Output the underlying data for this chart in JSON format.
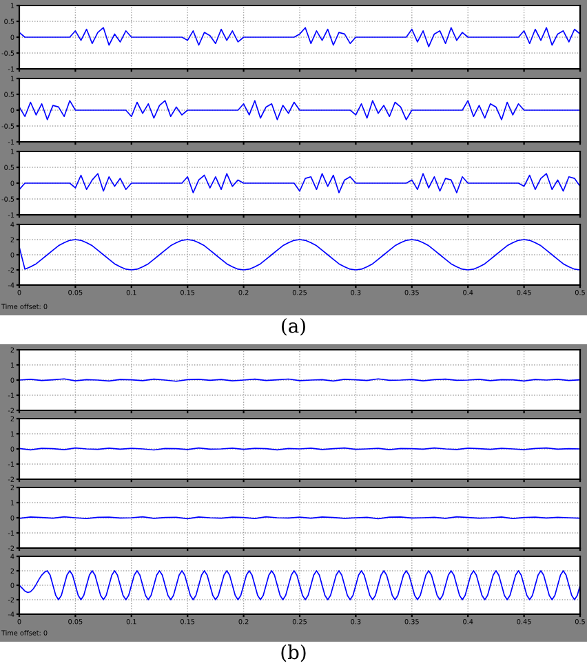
{
  "chart_data": [
    {
      "type": "line",
      "x": [
        0,
        0.005,
        0.01,
        0.015,
        0.02,
        0.025,
        0.03,
        0.035,
        0.04,
        0.045,
        0.05,
        0.055,
        0.06,
        0.065,
        0.07,
        0.075,
        0.08,
        0.085,
        0.09,
        0.095,
        0.1,
        0.105,
        0.11,
        0.115,
        0.12,
        0.125,
        0.13,
        0.135,
        0.14,
        0.145,
        0.15,
        0.155,
        0.16,
        0.165,
        0.17,
        0.175,
        0.18,
        0.185,
        0.19,
        0.195,
        0.2,
        0.205,
        0.21,
        0.215,
        0.22,
        0.225,
        0.23,
        0.235,
        0.24,
        0.245,
        0.25,
        0.255,
        0.26,
        0.265,
        0.27,
        0.275,
        0.28,
        0.285,
        0.29,
        0.295,
        0.3,
        0.305,
        0.31,
        0.315,
        0.32,
        0.325,
        0.33,
        0.335,
        0.34,
        0.345,
        0.35,
        0.355,
        0.36,
        0.365,
        0.37,
        0.375,
        0.38,
        0.385,
        0.39,
        0.395,
        0.4,
        0.405,
        0.41,
        0.415,
        0.42,
        0.425,
        0.43,
        0.435,
        0.44,
        0.445,
        0.45,
        0.455,
        0.46,
        0.465,
        0.47,
        0.475,
        0.48,
        0.485,
        0.49,
        0.495,
        0.5
      ],
      "series": [
        {
          "color": "#0000ff",
          "values": [
            0.15,
            0,
            0,
            0,
            0,
            0,
            0,
            0,
            0,
            0,
            0.2,
            -0.1,
            0.25,
            -0.2,
            0.15,
            0.3,
            -0.25,
            0.1,
            -0.15,
            0.2,
            0,
            0,
            0,
            0,
            0,
            0,
            0,
            0,
            0,
            0,
            -0.1,
            0.2,
            -0.25,
            0.15,
            0.05,
            -0.2,
            0.25,
            -0.1,
            0.2,
            -0.15,
            0,
            0,
            0,
            0,
            0,
            0,
            0,
            0,
            0,
            0,
            0.1,
            0.3,
            -0.2,
            0.2,
            -0.1,
            0.25,
            -0.25,
            0.15,
            0.1,
            -0.2,
            0,
            0,
            0,
            0,
            0,
            0,
            0,
            0,
            0,
            0,
            0.25,
            -0.15,
            0.2,
            -0.3,
            0.1,
            0.2,
            -0.2,
            0.3,
            -0.1,
            0.15,
            0,
            0,
            0,
            0,
            0,
            0,
            0,
            0,
            0,
            0,
            0.2,
            -0.2,
            0.25,
            -0.1,
            0.3,
            -0.25,
            0.1,
            0.2,
            -0.15,
            0.25,
            0.1
          ]
        }
      ],
      "xlim": [
        0,
        0.5
      ],
      "ylim": [
        -1,
        1
      ],
      "xticks": [
        0,
        0.05,
        0.1,
        0.15,
        0.2,
        0.25,
        0.3,
        0.35,
        0.4,
        0.45,
        0.5
      ],
      "yticks": [
        -1,
        -0.5,
        0,
        0.5,
        1
      ],
      "grid": true,
      "tick_labels": "y"
    },
    {
      "type": "line",
      "x": [
        0,
        0.005,
        0.01,
        0.015,
        0.02,
        0.025,
        0.03,
        0.035,
        0.04,
        0.045,
        0.05,
        0.055,
        0.06,
        0.065,
        0.07,
        0.075,
        0.08,
        0.085,
        0.09,
        0.095,
        0.1,
        0.105,
        0.11,
        0.115,
        0.12,
        0.125,
        0.13,
        0.135,
        0.14,
        0.145,
        0.15,
        0.155,
        0.16,
        0.165,
        0.17,
        0.175,
        0.18,
        0.185,
        0.19,
        0.195,
        0.2,
        0.205,
        0.21,
        0.215,
        0.22,
        0.225,
        0.23,
        0.235,
        0.24,
        0.245,
        0.25,
        0.255,
        0.26,
        0.265,
        0.27,
        0.275,
        0.28,
        0.285,
        0.29,
        0.295,
        0.3,
        0.305,
        0.31,
        0.315,
        0.32,
        0.325,
        0.33,
        0.335,
        0.34,
        0.345,
        0.35,
        0.355,
        0.36,
        0.365,
        0.37,
        0.375,
        0.38,
        0.385,
        0.39,
        0.395,
        0.4,
        0.405,
        0.41,
        0.415,
        0.42,
        0.425,
        0.43,
        0.435,
        0.44,
        0.445,
        0.45,
        0.455,
        0.46,
        0.465,
        0.47,
        0.475,
        0.48,
        0.485,
        0.49,
        0.495,
        0.5
      ],
      "series": [
        {
          "color": "#0000ff",
          "values": [
            0.1,
            -0.2,
            0.25,
            -0.15,
            0.2,
            -0.3,
            0.15,
            0.1,
            -0.2,
            0.3,
            0,
            0,
            0,
            0,
            0,
            0,
            0,
            0,
            0,
            0,
            -0.2,
            0.25,
            -0.1,
            0.2,
            -0.25,
            0.15,
            0.3,
            -0.2,
            0.1,
            -0.15,
            0,
            0,
            0,
            0,
            0,
            0,
            0,
            0,
            0,
            0,
            0.2,
            -0.15,
            0.3,
            -0.25,
            0.1,
            0.2,
            -0.3,
            0.15,
            -0.1,
            0.25,
            0,
            0,
            0,
            0,
            0,
            0,
            0,
            0,
            0,
            0,
            -0.15,
            0.2,
            -0.25,
            0.3,
            -0.1,
            0.15,
            -0.2,
            0.25,
            0.1,
            -0.3,
            0,
            0,
            0,
            0,
            0,
            0,
            0,
            0,
            0,
            0,
            0.3,
            -0.2,
            0.15,
            -0.25,
            0.2,
            0.1,
            -0.3,
            0.25,
            -0.15,
            0.2,
            0,
            0,
            0,
            0,
            0,
            0,
            0,
            0,
            0,
            0,
            0
          ]
        }
      ],
      "xlim": [
        0,
        0.5
      ],
      "ylim": [
        -1,
        1
      ],
      "xticks": [
        0,
        0.05,
        0.1,
        0.15,
        0.2,
        0.25,
        0.3,
        0.35,
        0.4,
        0.45,
        0.5
      ],
      "yticks": [
        -1,
        -0.5,
        0,
        0.5,
        1
      ],
      "grid": true,
      "tick_labels": "y"
    },
    {
      "type": "line",
      "x": [
        0,
        0.005,
        0.01,
        0.015,
        0.02,
        0.025,
        0.03,
        0.035,
        0.04,
        0.045,
        0.05,
        0.055,
        0.06,
        0.065,
        0.07,
        0.075,
        0.08,
        0.085,
        0.09,
        0.095,
        0.1,
        0.105,
        0.11,
        0.115,
        0.12,
        0.125,
        0.13,
        0.135,
        0.14,
        0.145,
        0.15,
        0.155,
        0.16,
        0.165,
        0.17,
        0.175,
        0.18,
        0.185,
        0.19,
        0.195,
        0.2,
        0.205,
        0.21,
        0.215,
        0.22,
        0.225,
        0.23,
        0.235,
        0.24,
        0.245,
        0.25,
        0.255,
        0.26,
        0.265,
        0.27,
        0.275,
        0.28,
        0.285,
        0.29,
        0.295,
        0.3,
        0.305,
        0.31,
        0.315,
        0.32,
        0.325,
        0.33,
        0.335,
        0.34,
        0.345,
        0.35,
        0.355,
        0.36,
        0.365,
        0.37,
        0.375,
        0.38,
        0.385,
        0.39,
        0.395,
        0.4,
        0.405,
        0.41,
        0.415,
        0.42,
        0.425,
        0.43,
        0.435,
        0.44,
        0.445,
        0.45,
        0.455,
        0.46,
        0.465,
        0.47,
        0.475,
        0.48,
        0.485,
        0.49,
        0.495,
        0.5
      ],
      "series": [
        {
          "color": "#0000ff",
          "values": [
            -0.2,
            0,
            0,
            0,
            0,
            0,
            0,
            0,
            0,
            0,
            -0.15,
            0.25,
            -0.2,
            0.1,
            0.3,
            -0.25,
            0.2,
            -0.1,
            0.15,
            -0.2,
            0,
            0,
            0,
            0,
            0,
            0,
            0,
            0,
            0,
            0,
            0.2,
            -0.3,
            0.1,
            0.25,
            -0.15,
            0.2,
            -0.2,
            0.3,
            -0.1,
            0.1,
            0,
            0,
            0,
            0,
            0,
            0,
            0,
            0,
            0,
            0,
            -0.25,
            0.15,
            0.2,
            -0.2,
            0.3,
            -0.1,
            0.25,
            -0.3,
            0.1,
            0.2,
            0,
            0,
            0,
            0,
            0,
            0,
            0,
            0,
            0,
            0,
            0.1,
            -0.2,
            0.3,
            -0.15,
            0.2,
            -0.25,
            0.15,
            0.1,
            -0.3,
            0.2,
            0,
            0,
            0,
            0,
            0,
            0,
            0,
            0,
            0,
            0,
            -0.1,
            0.25,
            -0.2,
            0.15,
            0.3,
            -0.2,
            0.1,
            -0.25,
            0.2,
            0.15,
            -0.1
          ]
        }
      ],
      "xlim": [
        0,
        0.5
      ],
      "ylim": [
        -1,
        1
      ],
      "xticks": [
        0,
        0.05,
        0.1,
        0.15,
        0.2,
        0.25,
        0.3,
        0.35,
        0.4,
        0.45,
        0.5
      ],
      "yticks": [
        -1,
        -0.5,
        0,
        0.5,
        1
      ],
      "grid": true,
      "tick_labels": "y"
    },
    {
      "type": "line",
      "x": [
        0,
        0.005,
        0.01,
        0.015,
        0.02,
        0.025,
        0.03,
        0.035,
        0.04,
        0.045,
        0.05,
        0.055,
        0.06,
        0.065,
        0.07,
        0.075,
        0.08,
        0.085,
        0.09,
        0.095,
        0.1,
        0.105,
        0.11,
        0.115,
        0.12,
        0.125,
        0.13,
        0.135,
        0.14,
        0.145,
        0.15,
        0.155,
        0.16,
        0.165,
        0.17,
        0.175,
        0.18,
        0.185,
        0.19,
        0.195,
        0.2,
        0.205,
        0.21,
        0.215,
        0.22,
        0.225,
        0.23,
        0.235,
        0.24,
        0.245,
        0.25,
        0.255,
        0.26,
        0.265,
        0.27,
        0.275,
        0.28,
        0.285,
        0.29,
        0.295,
        0.3,
        0.305,
        0.31,
        0.315,
        0.32,
        0.325,
        0.33,
        0.335,
        0.34,
        0.345,
        0.35,
        0.355,
        0.36,
        0.365,
        0.37,
        0.375,
        0.38,
        0.385,
        0.39,
        0.395,
        0.4,
        0.405,
        0.41,
        0.415,
        0.42,
        0.425,
        0.43,
        0.435,
        0.44,
        0.445,
        0.45,
        0.455,
        0.46,
        0.465,
        0.47,
        0.475,
        0.48,
        0.485,
        0.49,
        0.495,
        0.5
      ],
      "series": [
        {
          "color": "#0000ff",
          "values": [
            1,
            -1.9,
            -1.6,
            -1.2,
            -0.6,
            0,
            0.6,
            1.2,
            1.6,
            1.9,
            2,
            1.9,
            1.6,
            1.2,
            0.6,
            0,
            -0.6,
            -1.2,
            -1.6,
            -1.9,
            -2,
            -1.9,
            -1.6,
            -1.2,
            -0.6,
            0,
            0.6,
            1.2,
            1.6,
            1.9,
            2,
            1.9,
            1.6,
            1.2,
            0.6,
            0,
            -0.6,
            -1.2,
            -1.6,
            -1.9,
            -2,
            -1.9,
            -1.6,
            -1.2,
            -0.6,
            0,
            0.6,
            1.2,
            1.6,
            1.9,
            2,
            1.9,
            1.6,
            1.2,
            0.6,
            0,
            -0.6,
            -1.2,
            -1.6,
            -1.9,
            -2,
            -1.9,
            -1.6,
            -1.2,
            -0.6,
            0,
            0.6,
            1.2,
            1.6,
            1.9,
            2,
            1.9,
            1.6,
            1.2,
            0.6,
            0,
            -0.6,
            -1.2,
            -1.6,
            -1.9,
            -2,
            -1.9,
            -1.6,
            -1.2,
            -0.6,
            0,
            0.6,
            1.2,
            1.6,
            1.9,
            2,
            1.9,
            1.6,
            1.2,
            0.6,
            0,
            -0.6,
            -1.2,
            -1.6,
            -1.9,
            -2
          ]
        }
      ],
      "xlim": [
        0,
        0.5
      ],
      "ylim": [
        -4,
        4
      ],
      "xticks": [
        0,
        0.05,
        0.1,
        0.15,
        0.2,
        0.25,
        0.3,
        0.35,
        0.4,
        0.45,
        0.5
      ],
      "yticks": [
        -4,
        -2,
        0,
        2,
        4
      ],
      "grid": true,
      "annotations": [
        "Time offset: 0",
        "(a)"
      ]
    },
    {
      "type": "line",
      "x": [
        0,
        0.01,
        0.02,
        0.03,
        0.04,
        0.05,
        0.06,
        0.07,
        0.08,
        0.09,
        0.1,
        0.11,
        0.12,
        0.13,
        0.14,
        0.15,
        0.16,
        0.17,
        0.18,
        0.19,
        0.2,
        0.21,
        0.22,
        0.23,
        0.24,
        0.25,
        0.26,
        0.27,
        0.28,
        0.29,
        0.3,
        0.31,
        0.32,
        0.33,
        0.34,
        0.35,
        0.36,
        0.37,
        0.38,
        0.39,
        0.4,
        0.41,
        0.42,
        0.43,
        0.44,
        0.45,
        0.46,
        0.47,
        0.48,
        0.49,
        0.5
      ],
      "series": [
        {
          "color": "#0000ff",
          "values": [
            0,
            0.05,
            -0.03,
            0.02,
            0.08,
            -0.05,
            0.03,
            0,
            -0.06,
            0.04,
            0.02,
            -0.04,
            0.06,
            0,
            -0.08,
            0.03,
            0.05,
            -0.02,
            0.04,
            -0.05,
            0,
            0.06,
            -0.03,
            0.02,
            0.07,
            -0.04,
            0,
            0.03,
            -0.06,
            0.05,
            0.02,
            -0.03,
            0.08,
            -0.02,
            0,
            0.04,
            -0.05,
            0.03,
            0.06,
            -0.02,
            0,
            0.05,
            -0.04,
            0.03,
            0.02,
            -0.06,
            0.04,
            0,
            0.05,
            -0.03,
            0.02
          ]
        }
      ],
      "xlim": [
        0,
        0.5
      ],
      "ylim": [
        -2,
        2
      ],
      "xticks": [
        0,
        0.05,
        0.1,
        0.15,
        0.2,
        0.25,
        0.3,
        0.35,
        0.4,
        0.45,
        0.5
      ],
      "yticks": [
        -2,
        -1,
        0,
        1,
        2
      ],
      "grid": true,
      "tick_labels": "y"
    },
    {
      "type": "line",
      "x": [
        0,
        0.01,
        0.02,
        0.03,
        0.04,
        0.05,
        0.06,
        0.07,
        0.08,
        0.09,
        0.1,
        0.11,
        0.12,
        0.13,
        0.14,
        0.15,
        0.16,
        0.17,
        0.18,
        0.19,
        0.2,
        0.21,
        0.22,
        0.23,
        0.24,
        0.25,
        0.26,
        0.27,
        0.28,
        0.29,
        0.3,
        0.31,
        0.32,
        0.33,
        0.34,
        0.35,
        0.36,
        0.37,
        0.38,
        0.39,
        0.4,
        0.41,
        0.42,
        0.43,
        0.44,
        0.45,
        0.46,
        0.47,
        0.48,
        0.49,
        0.5
      ],
      "series": [
        {
          "color": "#0000ff",
          "values": [
            0.03,
            -0.06,
            0.04,
            0.02,
            -0.05,
            0.06,
            0,
            -0.03,
            0.05,
            -0.02,
            0.04,
            0,
            -0.07,
            0.03,
            0.02,
            -0.04,
            0.06,
            -0.02,
            0,
            0.05,
            -0.03,
            0.04,
            0.02,
            -0.06,
            0.03,
            0,
            0.05,
            -0.04,
            0.02,
            0.06,
            -0.03,
            0,
            0.04,
            -0.05,
            0.03,
            0.02,
            -0.02,
            0.06,
            0,
            -0.04,
            0.05,
            0.02,
            -0.03,
            0.04,
            0,
            -0.05,
            0.03,
            0.06,
            -0.02,
            0.02,
            0
          ]
        }
      ],
      "xlim": [
        0,
        0.5
      ],
      "ylim": [
        -2,
        2
      ],
      "xticks": [
        0,
        0.05,
        0.1,
        0.15,
        0.2,
        0.25,
        0.3,
        0.35,
        0.4,
        0.45,
        0.5
      ],
      "yticks": [
        -2,
        -1,
        0,
        1,
        2
      ],
      "grid": true,
      "tick_labels": "y"
    },
    {
      "type": "line",
      "x": [
        0,
        0.01,
        0.02,
        0.03,
        0.04,
        0.05,
        0.06,
        0.07,
        0.08,
        0.09,
        0.1,
        0.11,
        0.12,
        0.13,
        0.14,
        0.15,
        0.16,
        0.17,
        0.18,
        0.19,
        0.2,
        0.21,
        0.22,
        0.23,
        0.24,
        0.25,
        0.26,
        0.27,
        0.28,
        0.29,
        0.3,
        0.31,
        0.32,
        0.33,
        0.34,
        0.35,
        0.36,
        0.37,
        0.38,
        0.39,
        0.4,
        0.41,
        0.42,
        0.43,
        0.44,
        0.45,
        0.46,
        0.47,
        0.48,
        0.49,
        0.5
      ],
      "series": [
        {
          "color": "#0000ff",
          "values": [
            -0.04,
            0.05,
            0.02,
            -0.03,
            0.06,
            0,
            -0.05,
            0.03,
            0.04,
            -0.02,
            0,
            0.06,
            -0.04,
            0.02,
            0.03,
            -0.06,
            0.05,
            0,
            -0.03,
            0.04,
            0.02,
            -0.05,
            0.06,
            0,
            -0.02,
            0.04,
            -0.03,
            0.05,
            0.02,
            -0.04,
            0,
            0.03,
            -0.06,
            0.04,
            0.05,
            -0.02,
            0,
            0.03,
            -0.04,
            0.06,
            0.02,
            -0.03,
            0,
            0.05,
            -0.05,
            0.02,
            0.04,
            -0.02,
            0.03,
            0,
            -0.03
          ]
        }
      ],
      "xlim": [
        0,
        0.5
      ],
      "ylim": [
        -2,
        2
      ],
      "xticks": [
        0,
        0.05,
        0.1,
        0.15,
        0.2,
        0.25,
        0.3,
        0.35,
        0.4,
        0.45,
        0.5
      ],
      "yticks": [
        -2,
        -1,
        0,
        1,
        2
      ],
      "grid": true,
      "tick_labels": "y"
    },
    {
      "type": "line",
      "x": [
        0,
        0.0025,
        0.005,
        0.0075,
        0.01,
        0.0125,
        0.015,
        0.0175,
        0.02,
        0.0225,
        0.025,
        0.0275,
        0.03,
        0.0325,
        0.035,
        0.0375,
        0.04,
        0.0425,
        0.045,
        0.0475,
        0.05,
        0.0525,
        0.055,
        0.0575,
        0.06,
        0.0625,
        0.065,
        0.0675,
        0.07,
        0.0725,
        0.075,
        0.0775,
        0.08,
        0.0825,
        0.085,
        0.0875,
        0.09,
        0.0925,
        0.095,
        0.0975,
        0.1,
        0.1025,
        0.105,
        0.1075,
        0.11,
        0.1125,
        0.115,
        0.1175,
        0.12,
        0.1225,
        0.125,
        0.1275,
        0.13,
        0.1325,
        0.135,
        0.1375,
        0.14,
        0.1425,
        0.145,
        0.1475,
        0.15,
        0.1525,
        0.155,
        0.1575,
        0.16,
        0.1625,
        0.165,
        0.1675,
        0.17,
        0.1725,
        0.175,
        0.1775,
        0.18,
        0.1825,
        0.185,
        0.1875,
        0.19,
        0.1925,
        0.195,
        0.1975,
        0.2,
        0.2025,
        0.205,
        0.2075,
        0.21,
        0.2125,
        0.215,
        0.2175,
        0.22,
        0.2225,
        0.225,
        0.2275,
        0.23,
        0.2325,
        0.235,
        0.2375,
        0.24,
        0.2425,
        0.245,
        0.2475,
        0.25,
        0.2525,
        0.255,
        0.2575,
        0.26,
        0.2625,
        0.265,
        0.2675,
        0.27,
        0.2725,
        0.275,
        0.2775,
        0.28,
        0.2825,
        0.285,
        0.2875,
        0.29,
        0.2925,
        0.295,
        0.2975,
        0.3,
        0.3025,
        0.305,
        0.3075,
        0.31,
        0.3125,
        0.315,
        0.3175,
        0.32,
        0.3225,
        0.325,
        0.3275,
        0.33,
        0.3325,
        0.335,
        0.3375,
        0.34,
        0.3425,
        0.345,
        0.3475,
        0.35,
        0.3525,
        0.355,
        0.3575,
        0.36,
        0.3625,
        0.365,
        0.3675,
        0.37,
        0.3725,
        0.375,
        0.3775,
        0.38,
        0.3825,
        0.385,
        0.3875,
        0.39,
        0.3925,
        0.395,
        0.3975,
        0.4,
        0.4025,
        0.405,
        0.4075,
        0.41,
        0.4125,
        0.415,
        0.4175,
        0.42,
        0.4225,
        0.425,
        0.4275,
        0.43,
        0.4325,
        0.435,
        0.4375,
        0.44,
        0.4425,
        0.445,
        0.4475,
        0.45,
        0.4525,
        0.455,
        0.4575,
        0.46,
        0.4625,
        0.465,
        0.4675,
        0.47,
        0.4725,
        0.475,
        0.4775,
        0.48,
        0.4825,
        0.485,
        0.4875,
        0.49,
        0.4925,
        0.495,
        0.4975,
        0.5
      ],
      "series": [
        {
          "color": "#0000ff",
          "values": [
            0,
            -0.4,
            -0.8,
            -1,
            -0.9,
            -0.5,
            0.1,
            0.8,
            1.4,
            1.8,
            2,
            1.4,
            0,
            -1.4,
            -2,
            -1.4,
            0,
            1.4,
            2,
            1.4,
            0,
            -1.4,
            -2,
            -1.4,
            0,
            1.4,
            2,
            1.4,
            0,
            -1.4,
            -2,
            -1.4,
            0,
            1.4,
            2,
            1.4,
            0,
            -1.4,
            -2,
            -1.4,
            0,
            1.4,
            2,
            1.4,
            0,
            -1.4,
            -2,
            -1.4,
            0,
            1.4,
            2,
            1.4,
            0,
            -1.4,
            -2,
            -1.4,
            0,
            1.4,
            2,
            1.4,
            0,
            -1.4,
            -2,
            -1.4,
            0,
            1.4,
            2,
            1.4,
            0,
            -1.4,
            -2,
            -1.4,
            0,
            1.4,
            2,
            1.4,
            0,
            -1.4,
            -2,
            -1.4,
            0,
            1.4,
            2,
            1.4,
            0,
            -1.4,
            -2,
            -1.4,
            0,
            1.4,
            2,
            1.4,
            0,
            -1.4,
            -2,
            -1.4,
            0,
            1.4,
            2,
            1.4,
            0,
            -1.4,
            -2,
            -1.4,
            0,
            1.4,
            2,
            1.4,
            0,
            -1.4,
            -2,
            -1.4,
            0,
            1.4,
            2,
            1.4,
            0,
            -1.4,
            -2,
            -1.4,
            0,
            1.4,
            2,
            1.4,
            0,
            -1.4,
            -2,
            -1.4,
            0,
            1.4,
            2,
            1.4,
            0,
            -1.4,
            -2,
            -1.4,
            0,
            1.4,
            2,
            1.4,
            0,
            -1.4,
            -2,
            -1.4,
            0,
            1.4,
            2,
            1.4,
            0,
            -1.4,
            -2,
            -1.4,
            0,
            1.4,
            2,
            1.4,
            0,
            -1.4,
            -2,
            -1.4,
            0,
            1.4,
            2,
            1.4,
            0,
            -1.4,
            -2,
            -1.4,
            0,
            1.4,
            2,
            1.4,
            0,
            -1.4,
            -2,
            -1.4,
            0,
            1.4,
            2,
            1.4,
            0,
            -1.4,
            -2,
            -1.4,
            0,
            1.4,
            2,
            1.4,
            0,
            -1.4,
            -2,
            -1.4,
            0,
            1.4,
            2,
            1.4,
            0,
            -1.4,
            -2,
            -1.4,
            0
          ]
        }
      ],
      "xlim": [
        0,
        0.5
      ],
      "ylim": [
        -4,
        4
      ],
      "xticks": [
        0,
        0.05,
        0.1,
        0.15,
        0.2,
        0.25,
        0.3,
        0.35,
        0.4,
        0.45,
        0.5
      ],
      "yticks": [
        -4,
        -2,
        0,
        2,
        4
      ],
      "grid": true,
      "annotations": [
        "Time offset: 0",
        "(b)"
      ]
    }
  ]
}
